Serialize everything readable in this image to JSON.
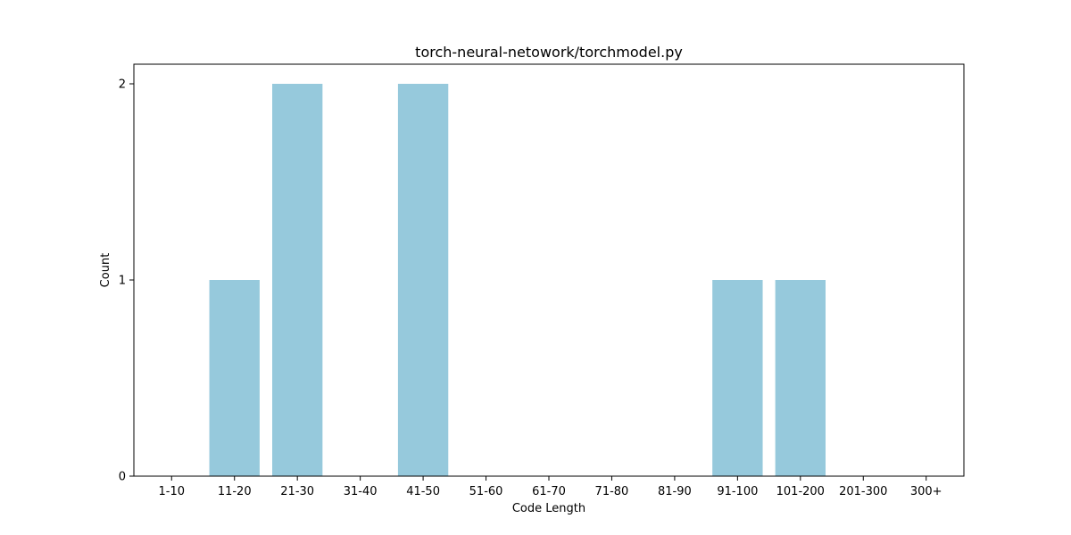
{
  "chart_data": {
    "type": "bar",
    "title": "torch-neural-netowork/torchmodel.py",
    "xlabel": "Code Length",
    "ylabel": "Count",
    "categories": [
      "1-10",
      "11-20",
      "21-30",
      "31-40",
      "41-50",
      "51-60",
      "61-70",
      "71-80",
      "81-90",
      "91-100",
      "101-200",
      "201-300",
      "300+"
    ],
    "values": [
      0,
      1,
      2,
      0,
      2,
      0,
      0,
      0,
      0,
      1,
      1,
      0,
      0
    ],
    "yticks": [
      0,
      1,
      2
    ],
    "ylim": [
      0,
      2.1
    ],
    "bar_color": "#96c9dc",
    "grid": false,
    "legend": "none"
  }
}
